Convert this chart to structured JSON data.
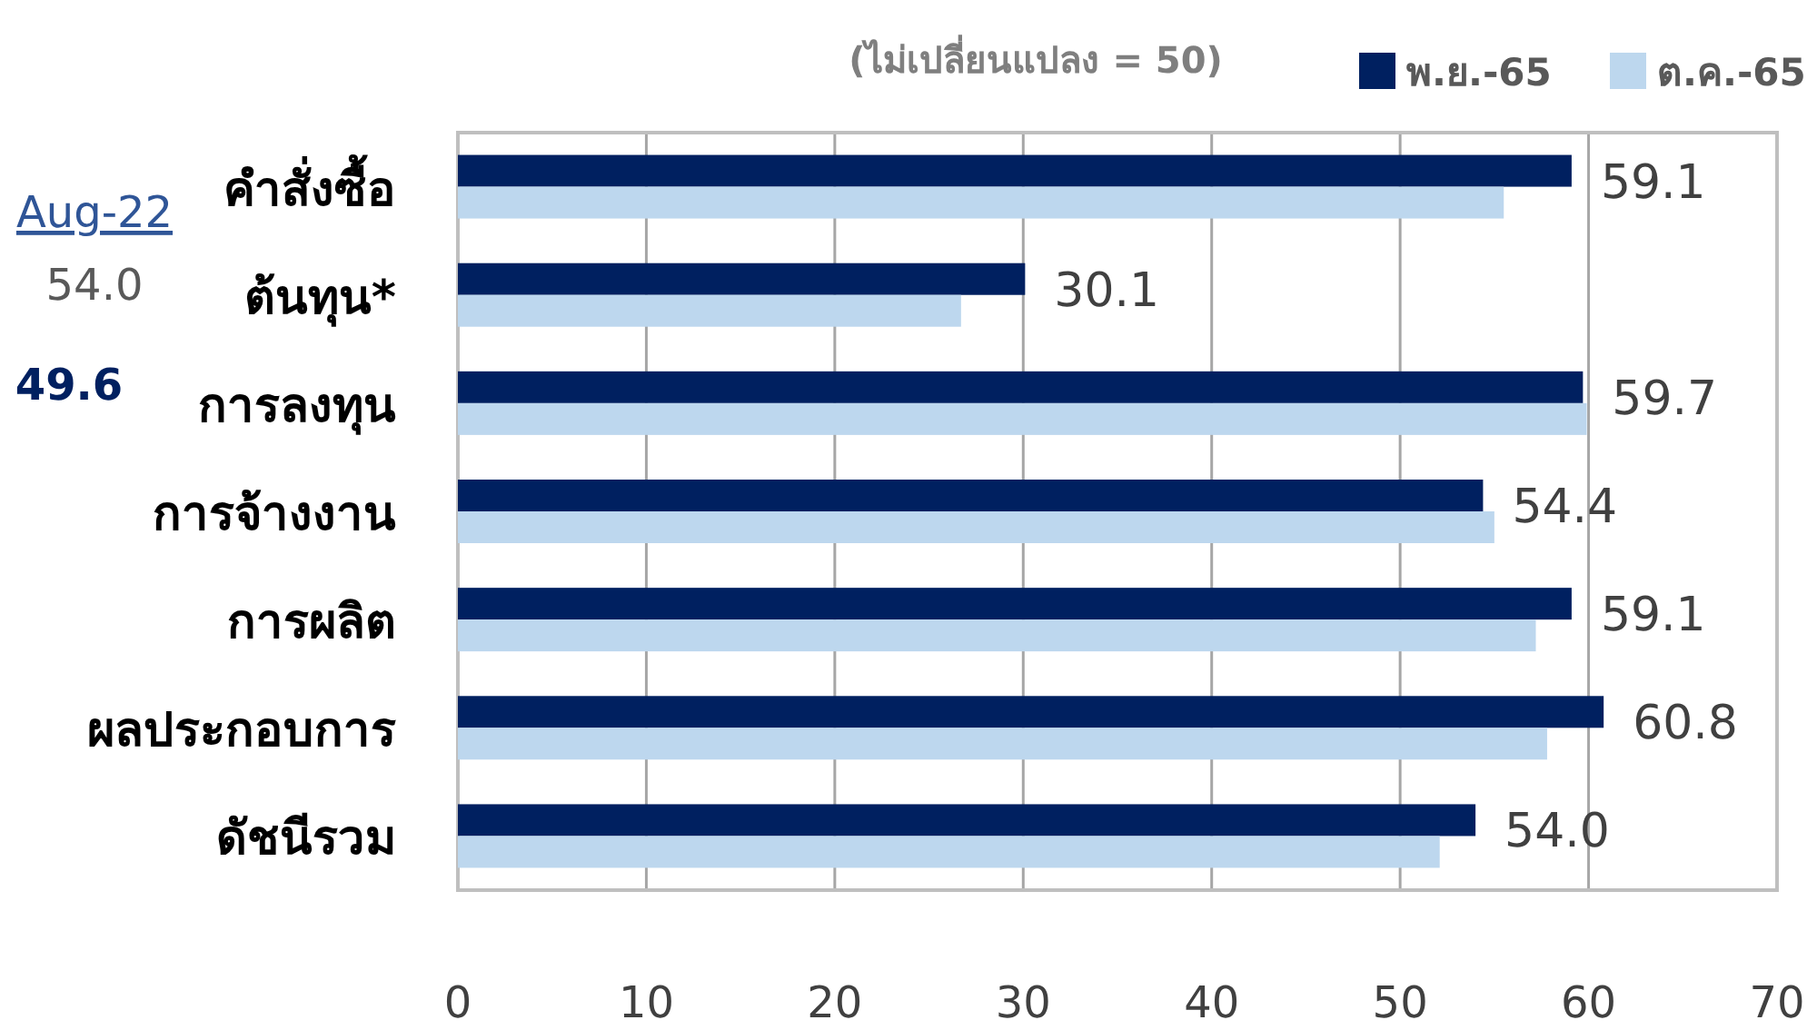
{
  "chart_data": {
    "type": "bar",
    "orientation": "horizontal",
    "subtitle": "(ไม่เปลี่ยนแปลง = 50)",
    "categories": [
      "คำสั่งซื้อ",
      "ต้นทุน*",
      "การลงทุน",
      "การจ้างงาน",
      "การผลิต",
      "ผลประกอบการ",
      "ดัชนีรวม"
    ],
    "series": [
      {
        "name": "พ.ย.-65",
        "color": "#002060",
        "values": [
          59.1,
          30.1,
          59.7,
          54.4,
          59.1,
          60.8,
          54.0
        ],
        "value_labels": [
          "59.1",
          "30.1",
          "59.7",
          "54.4",
          "59.1",
          "60.8",
          "54.0"
        ]
      },
      {
        "name": "ต.ค.-65",
        "color": "#bdd7ee",
        "values": [
          55.5,
          26.7,
          59.9,
          55.0,
          57.2,
          57.8,
          52.1
        ]
      }
    ],
    "xlim": [
      0,
      70
    ],
    "xticks": [
      0,
      10,
      20,
      30,
      40,
      50,
      60,
      70
    ],
    "grid": "x",
    "legend": "top right",
    "annotations": [
      "Aug-22",
      "54.0",
      "49.6"
    ]
  }
}
